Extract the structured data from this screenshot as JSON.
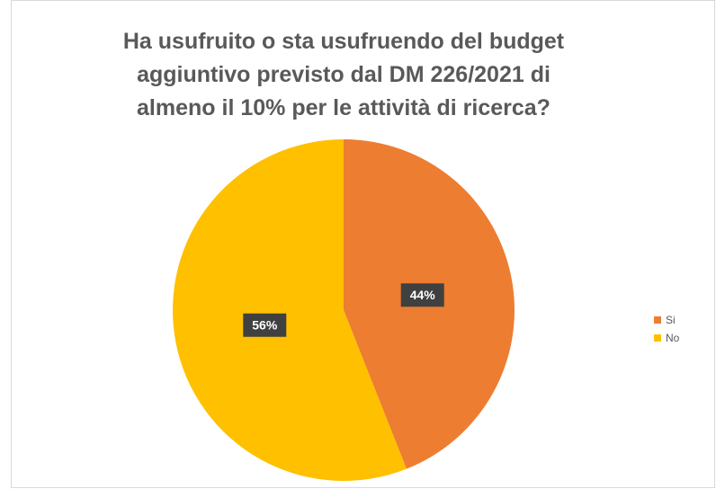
{
  "chart_data": {
    "type": "pie",
    "title": "Ha usufruito o sta usufruendo del budget aggiuntivo previsto dal DM 226/2021 di almeno il 10% per le attività di ricerca?",
    "categories": [
      "Si",
      "No"
    ],
    "values": [
      44,
      56
    ],
    "value_labels": [
      "44%",
      "56%"
    ],
    "colors": [
      "#ed7d31",
      "#ffc000"
    ],
    "legend": "right"
  }
}
